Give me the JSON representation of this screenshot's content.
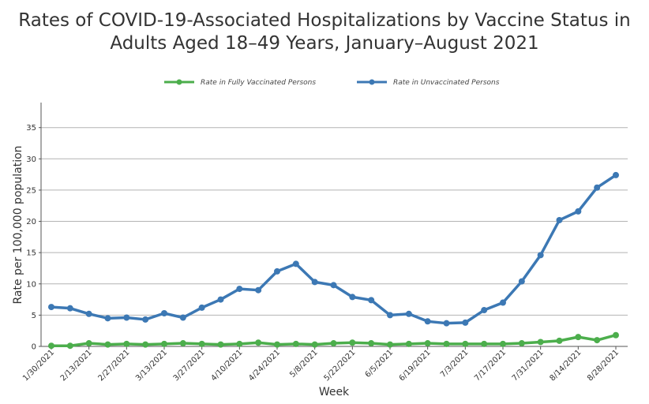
{
  "title_line1": "Rates of COVID-19-Associated Hospitalizations by Vaccine Status in",
  "title_line2": "Adults Aged 18–49 Years, January–August 2021",
  "chart_data": {
    "type": "line",
    "xlabel": "Week",
    "ylabel": "Rate per 100,000 population",
    "ylim": [
      0,
      39
    ],
    "yticks": [
      0,
      5,
      10,
      15,
      20,
      25,
      30,
      35
    ],
    "grid": true,
    "legend_position": "top-center",
    "x": [
      "1/30/2021",
      "2/6/2021",
      "2/13/2021",
      "2/20/2021",
      "2/27/2021",
      "3/6/2021",
      "3/13/2021",
      "3/20/2021",
      "3/27/2021",
      "4/3/2021",
      "4/10/2021",
      "4/17/2021",
      "4/24/2021",
      "5/1/2021",
      "5/8/2021",
      "5/15/2021",
      "5/22/2021",
      "5/29/2021",
      "6/5/2021",
      "6/12/2021",
      "6/19/2021",
      "6/26/2021",
      "7/3/2021",
      "7/10/2021",
      "7/17/2021",
      "7/24/2021",
      "7/31/2021",
      "8/7/2021",
      "8/14/2021",
      "8/21/2021",
      "8/28/2021"
    ],
    "x_tick_labels": [
      "1/30/2021",
      "2/13/2021",
      "2/27/2021",
      "3/13/2021",
      "3/27/2021",
      "4/10/2021",
      "4/24/2021",
      "5/8/2021",
      "5/22/2021",
      "6/5/2021",
      "6/19/2021",
      "7/3/2021",
      "7/17/2021",
      "7/31/2021",
      "8/14/2021",
      "8/28/2021"
    ],
    "series": [
      {
        "name": "Rate in Fully Vaccinated Persons",
        "color": "#4cae4c",
        "values": [
          0.1,
          0.1,
          0.5,
          0.3,
          0.4,
          0.3,
          0.4,
          0.5,
          0.4,
          0.3,
          0.4,
          0.6,
          0.3,
          0.4,
          0.3,
          0.5,
          0.6,
          0.5,
          0.3,
          0.4,
          0.5,
          0.4,
          0.4,
          0.4,
          0.4,
          0.5,
          0.7,
          0.9,
          1.5,
          1.0,
          1.8
        ]
      },
      {
        "name": "Rate in Unvaccinated Persons",
        "color": "#3c78b4",
        "values": [
          6.3,
          6.1,
          5.2,
          4.5,
          4.6,
          4.3,
          5.3,
          4.6,
          6.2,
          7.5,
          9.2,
          9.0,
          12.0,
          13.2,
          10.3,
          9.8,
          7.9,
          7.4,
          5.0,
          5.2,
          4.0,
          3.7,
          3.8,
          5.8,
          7.0,
          10.4,
          14.6,
          20.2,
          21.6,
          25.4,
          27.4
        ]
      }
    ]
  }
}
